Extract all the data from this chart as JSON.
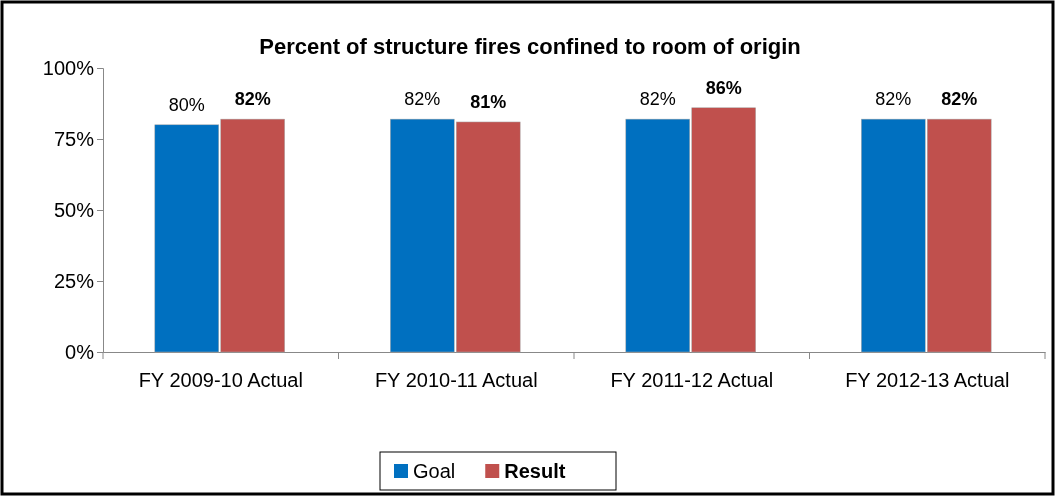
{
  "chart_data": {
    "type": "bar",
    "title": "Percent of structure fires confined to room of origin",
    "categories": [
      "FY 2009-10 Actual",
      "FY 2010-11 Actual",
      "FY 2011-12 Actual",
      "FY 2012-13 Actual"
    ],
    "series": [
      {
        "name": "Goal",
        "color": "#0070c0",
        "values": [
          80,
          82,
          82,
          82
        ],
        "value_labels": [
          "80%",
          "82%",
          "82%",
          "82%"
        ]
      },
      {
        "name": "Result",
        "color": "#c0504d",
        "values": [
          82,
          81,
          86,
          82
        ],
        "value_labels": [
          "82%",
          "81%",
          "86%",
          "82%"
        ]
      }
    ],
    "ylim": [
      0,
      100
    ],
    "yticks": [
      {
        "value": 0,
        "label": "0%"
      },
      {
        "value": 25,
        "label": "25%"
      },
      {
        "value": 50,
        "label": "50%"
      },
      {
        "value": 75,
        "label": "75%"
      },
      {
        "value": 100,
        "label": "100%"
      }
    ],
    "grid": false,
    "legend": "bottom"
  }
}
